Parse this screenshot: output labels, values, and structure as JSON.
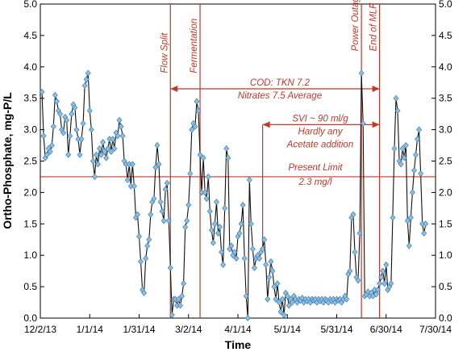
{
  "chart_data": {
    "type": "line",
    "xlabel": "Time",
    "ylabel": "Ortho-Phosphate, mg-P/L",
    "ylim": [
      0,
      5
    ],
    "xlim": [
      "2013-12-02",
      "2014-07-30"
    ],
    "x_ticks": [
      "12/2/13",
      "1/1/14",
      "1/31/14",
      "3/2/14",
      "4/1/14",
      "5/1/14",
      "5/31/14",
      "6/30/14",
      "7/30/14"
    ],
    "y_ticks": [
      "0.0",
      "0.5",
      "1.0",
      "1.5",
      "2.0",
      "2.5",
      "3.0",
      "3.5",
      "4.0",
      "4.5",
      "5.0"
    ],
    "grid": false,
    "line_color": "#111111",
    "marker_color": "#8fbfe0",
    "annotation_color": "#c0392b",
    "series": [
      {
        "points": [
          [
            "2013-12-03",
            3.6
          ],
          [
            "2013-12-04",
            2.9
          ],
          [
            "2013-12-05",
            2.55
          ],
          [
            "2013-12-06",
            2.6
          ],
          [
            "2013-12-07",
            2.7
          ],
          [
            "2013-12-08",
            2.65
          ],
          [
            "2013-12-09",
            2.75
          ],
          [
            "2013-12-10",
            3.05
          ],
          [
            "2013-12-11",
            3.55
          ],
          [
            "2013-12-12",
            3.45
          ],
          [
            "2013-12-13",
            3.3
          ],
          [
            "2013-12-14",
            3.25
          ],
          [
            "2013-12-15",
            3.0
          ],
          [
            "2013-12-16",
            2.95
          ],
          [
            "2013-12-17",
            3.2
          ],
          [
            "2013-12-18",
            3.15
          ],
          [
            "2013-12-19",
            2.6
          ],
          [
            "2013-12-20",
            2.9
          ],
          [
            "2013-12-21",
            3.25
          ],
          [
            "2013-12-22",
            3.4
          ],
          [
            "2013-12-23",
            3.35
          ],
          [
            "2013-12-24",
            3.0
          ],
          [
            "2013-12-25",
            2.85
          ],
          [
            "2013-12-26",
            2.6
          ],
          [
            "2013-12-27",
            2.85
          ],
          [
            "2013-12-28",
            3.1
          ],
          [
            "2013-12-29",
            3.7
          ],
          [
            "2013-12-30",
            3.8
          ],
          [
            "2013-12-31",
            3.9
          ],
          [
            "2014-01-01",
            3.3
          ],
          [
            "2014-01-02",
            3.0
          ],
          [
            "2014-01-03",
            2.5
          ],
          [
            "2014-01-04",
            2.25
          ],
          [
            "2014-01-05",
            2.6
          ],
          [
            "2014-01-06",
            2.45
          ],
          [
            "2014-01-07",
            2.7
          ],
          [
            "2014-01-08",
            2.6
          ],
          [
            "2014-01-09",
            2.8
          ],
          [
            "2014-01-10",
            2.65
          ],
          [
            "2014-01-11",
            2.55
          ],
          [
            "2014-01-12",
            2.7
          ],
          [
            "2014-01-13",
            2.85
          ],
          [
            "2014-01-14",
            2.65
          ],
          [
            "2014-01-15",
            2.85
          ],
          [
            "2014-01-16",
            2.7
          ],
          [
            "2014-01-17",
            2.95
          ],
          [
            "2014-01-18",
            2.9
          ],
          [
            "2014-01-19",
            3.15
          ],
          [
            "2014-01-20",
            3.05
          ],
          [
            "2014-01-21",
            2.9
          ],
          [
            "2014-01-22",
            2.5
          ],
          [
            "2014-01-23",
            2.45
          ],
          [
            "2014-01-24",
            2.2
          ],
          [
            "2014-01-25",
            2.45
          ],
          [
            "2014-01-26",
            2.1
          ],
          [
            "2014-01-27",
            2.45
          ],
          [
            "2014-01-28",
            2.1
          ],
          [
            "2014-01-29",
            1.6
          ],
          [
            "2014-01-30",
            1.65
          ],
          [
            "2014-01-31",
            1.3
          ],
          [
            "2014-02-01",
            0.9
          ],
          [
            "2014-02-02",
            0.45
          ],
          [
            "2014-02-03",
            0.4
          ],
          [
            "2014-02-04",
            0.95
          ],
          [
            "2014-02-05",
            1.15
          ],
          [
            "2014-02-06",
            1.25
          ],
          [
            "2014-02-07",
            1.65
          ],
          [
            "2014-02-08",
            1.85
          ],
          [
            "2014-02-09",
            1.9
          ],
          [
            "2014-02-10",
            2.4
          ],
          [
            "2014-02-11",
            2.75
          ],
          [
            "2014-02-12",
            2.45
          ],
          [
            "2014-02-13",
            1.85
          ],
          [
            "2014-02-14",
            1.7
          ],
          [
            "2014-02-15",
            1.55
          ],
          [
            "2014-02-16",
            2.05
          ],
          [
            "2014-02-17",
            2.15
          ],
          [
            "2014-02-18",
            1.55
          ],
          [
            "2014-02-19",
            0.8
          ],
          [
            "2014-02-20",
            0.05
          ],
          [
            "2014-02-21",
            0.3
          ],
          [
            "2014-02-22",
            0.3
          ],
          [
            "2014-02-23",
            0.2
          ],
          [
            "2014-02-24",
            0.3
          ],
          [
            "2014-02-25",
            0.2
          ],
          [
            "2014-02-26",
            0.35
          ],
          [
            "2014-02-27",
            0.55
          ],
          [
            "2014-02-28",
            1.45
          ],
          [
            "2014-03-01",
            1.55
          ],
          [
            "2014-03-02",
            1.8
          ],
          [
            "2014-03-03",
            2.3
          ],
          [
            "2014-03-04",
            3.0
          ],
          [
            "2014-03-05",
            3.1
          ],
          [
            "2014-03-06",
            3.05
          ],
          [
            "2014-03-07",
            3.45
          ],
          [
            "2014-03-08",
            3.3
          ],
          [
            "2014-03-09",
            2.6
          ],
          [
            "2014-03-10",
            2.0
          ],
          [
            "2014-03-11",
            2.55
          ],
          [
            "2014-03-12",
            2.0
          ],
          [
            "2014-03-13",
            1.9
          ],
          [
            "2014-03-14",
            2.25
          ],
          [
            "2014-03-15",
            1.7
          ],
          [
            "2014-03-16",
            1.4
          ],
          [
            "2014-03-17",
            1.2
          ],
          [
            "2014-03-18",
            1.5
          ],
          [
            "2014-03-19",
            1.85
          ],
          [
            "2014-03-20",
            1.35
          ],
          [
            "2014-03-21",
            1.45
          ],
          [
            "2014-03-22",
            1.05
          ],
          [
            "2014-03-23",
            0.85
          ],
          [
            "2014-03-24",
            1.75
          ],
          [
            "2014-03-25",
            2.7
          ],
          [
            "2014-03-26",
            2.55
          ],
          [
            "2014-03-27",
            1.1
          ],
          [
            "2014-03-28",
            1.15
          ],
          [
            "2014-03-29",
            1.0
          ],
          [
            "2014-03-30",
            1.05
          ],
          [
            "2014-03-31",
            0.95
          ],
          [
            "2014-04-01",
            1.3
          ],
          [
            "2014-04-02",
            1.35
          ],
          [
            "2014-04-03",
            1.5
          ],
          [
            "2014-04-04",
            1.8
          ],
          [
            "2014-04-05",
            0.95
          ],
          [
            "2014-04-06",
            0.35
          ],
          [
            "2014-04-07",
            0.0
          ],
          [
            "2014-04-08",
            2.2
          ],
          [
            "2014-04-09",
            1.5
          ],
          [
            "2014-04-10",
            1.1
          ],
          [
            "2014-04-11",
            0.8
          ],
          [
            "2014-04-12",
            0.95
          ],
          [
            "2014-04-13",
            1.0
          ],
          [
            "2014-04-14",
            0.95
          ],
          [
            "2014-04-15",
            1.05
          ],
          [
            "2014-04-16",
            1.1
          ],
          [
            "2014-04-17",
            1.25
          ],
          [
            "2014-04-18",
            0.85
          ],
          [
            "2014-04-19",
            0.3
          ],
          [
            "2014-04-20",
            0.65
          ],
          [
            "2014-04-21",
            0.9
          ],
          [
            "2014-04-22",
            0.75
          ],
          [
            "2014-04-23",
            0.5
          ],
          [
            "2014-04-24",
            0.3
          ],
          [
            "2014-04-25",
            0.55
          ],
          [
            "2014-04-26",
            0.25
          ],
          [
            "2014-04-27",
            0.1
          ],
          [
            "2014-04-28",
            0.3
          ],
          [
            "2014-04-29",
            0.05
          ],
          [
            "2014-04-30",
            0.4
          ],
          [
            "2014-05-01",
            0.35
          ],
          [
            "2014-05-02",
            0.2
          ],
          [
            "2014-05-03",
            0.3
          ],
          [
            "2014-05-04",
            0.25
          ],
          [
            "2014-05-05",
            0.35
          ],
          [
            "2014-05-06",
            0.3
          ],
          [
            "2014-05-07",
            0.25
          ],
          [
            "2014-05-08",
            0.3
          ],
          [
            "2014-05-09",
            0.28
          ],
          [
            "2014-05-10",
            0.32
          ],
          [
            "2014-05-11",
            0.25
          ],
          [
            "2014-05-12",
            0.3
          ],
          [
            "2014-05-13",
            0.27
          ],
          [
            "2014-05-14",
            0.3
          ],
          [
            "2014-05-15",
            0.25
          ],
          [
            "2014-05-16",
            0.3
          ],
          [
            "2014-05-17",
            0.28
          ],
          [
            "2014-05-18",
            0.3
          ],
          [
            "2014-05-19",
            0.25
          ],
          [
            "2014-05-20",
            0.3
          ],
          [
            "2014-05-21",
            0.27
          ],
          [
            "2014-05-22",
            0.3
          ],
          [
            "2014-05-23",
            0.25
          ],
          [
            "2014-05-24",
            0.3
          ],
          [
            "2014-05-25",
            0.28
          ],
          [
            "2014-05-26",
            0.25
          ],
          [
            "2014-05-27",
            0.3
          ],
          [
            "2014-05-28",
            0.27
          ],
          [
            "2014-05-29",
            0.3
          ],
          [
            "2014-05-30",
            0.25
          ],
          [
            "2014-05-31",
            0.3
          ],
          [
            "2014-06-01",
            0.28
          ],
          [
            "2014-06-02",
            0.3
          ],
          [
            "2014-06-03",
            0.25
          ],
          [
            "2014-06-04",
            0.3
          ],
          [
            "2014-06-05",
            0.35
          ],
          [
            "2014-06-06",
            0.3
          ],
          [
            "2014-06-07",
            0.7
          ],
          [
            "2014-06-08",
            0.75
          ],
          [
            "2014-06-09",
            1.6
          ],
          [
            "2014-06-10",
            1.65
          ],
          [
            "2014-06-11",
            1.05
          ],
          [
            "2014-06-12",
            0.65
          ],
          [
            "2014-06-13",
            0.6
          ],
          [
            "2014-06-14",
            1.35
          ],
          [
            "2014-06-15",
            3.9
          ],
          [
            "2014-06-16",
            3.1
          ],
          [
            "2014-06-17",
            0.35
          ],
          [
            "2014-06-18",
            0.38
          ],
          [
            "2014-06-19",
            0.42
          ],
          [
            "2014-06-20",
            0.35
          ],
          [
            "2014-06-21",
            0.4
          ],
          [
            "2014-06-22",
            0.35
          ],
          [
            "2014-06-23",
            0.45
          ],
          [
            "2014-06-24",
            0.38
          ],
          [
            "2014-06-25",
            0.45
          ],
          [
            "2014-06-26",
            0.55
          ],
          [
            "2014-06-27",
            0.65
          ],
          [
            "2014-06-28",
            0.75
          ],
          [
            "2014-06-29",
            0.55
          ],
          [
            "2014-06-30",
            0.85
          ],
          [
            "2014-07-01",
            0.45
          ],
          [
            "2014-07-02",
            0.5
          ],
          [
            "2014-07-03",
            0.55
          ],
          [
            "2014-07-04",
            1.6
          ],
          [
            "2014-07-05",
            2.7
          ],
          [
            "2014-07-06",
            3.5
          ],
          [
            "2014-07-07",
            3.3
          ],
          [
            "2014-07-08",
            2.5
          ],
          [
            "2014-07-09",
            2.45
          ],
          [
            "2014-07-10",
            2.7
          ],
          [
            "2014-07-11",
            2.55
          ],
          [
            "2014-07-12",
            2.75
          ],
          [
            "2014-07-13",
            1.55
          ],
          [
            "2014-07-14",
            1.15
          ],
          [
            "2014-07-15",
            1.6
          ],
          [
            "2014-07-16",
            2.0
          ],
          [
            "2014-07-17",
            2.35
          ],
          [
            "2014-07-18",
            2.6
          ],
          [
            "2014-07-19",
            2.85
          ],
          [
            "2014-07-20",
            3.0
          ],
          [
            "2014-07-21",
            2.3
          ],
          [
            "2014-07-22",
            1.5
          ],
          [
            "2014-07-23",
            1.35
          ],
          [
            "2014-07-24",
            1.5
          ]
        ]
      }
    ],
    "annotations": {
      "vlines": [
        {
          "label": "Flow Split",
          "x": "2014-02-19"
        },
        {
          "label": "Fermentation",
          "x": "2014-03-09"
        },
        {
          "label": "Power Outage",
          "x": "2014-06-15"
        },
        {
          "label": "End of MLF",
          "x": "2014-06-26"
        }
      ],
      "range_arrows": [
        {
          "lines": [
            "COD: TKN 7.2",
            "Nitrates 7.5 Average"
          ],
          "start": "2014-02-19",
          "end": "2014-06-26",
          "y": 3.65
        },
        {
          "lines": [
            "SVI ~ 90 ml/g",
            "Hardly any",
            "Acetate addition"
          ],
          "start": "2014-04-16",
          "end": "2014-06-26",
          "y": 3.08
        }
      ],
      "hline": {
        "lines": [
          "Present Limit",
          "2.3 mg/l"
        ],
        "y": 2.25
      }
    }
  }
}
